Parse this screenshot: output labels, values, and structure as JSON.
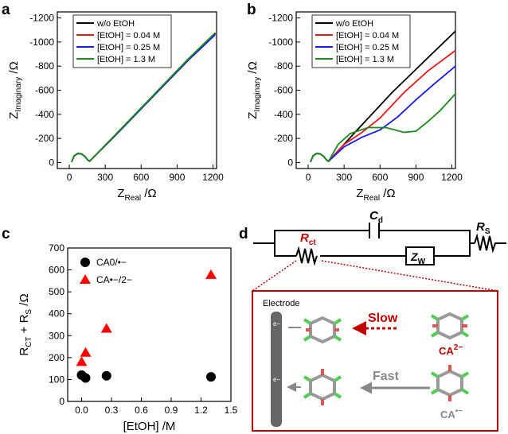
{
  "chart_data": [
    {
      "type": "line",
      "letter": "a",
      "xlabel": [
        "Z",
        "Real",
        " /Ω"
      ],
      "ylabel": [
        "Z",
        "Imaginary",
        " /Ω"
      ],
      "xlim": [
        -100,
        1230
      ],
      "xticks": [
        0,
        300,
        600,
        900,
        1200
      ],
      "ylim": [
        50,
        -1250
      ],
      "yticks": [
        0,
        -200,
        -400,
        -600,
        -800,
        -1000,
        -1200
      ],
      "legend": "top-left",
      "series": [
        {
          "name": "w/o EtOH",
          "color": "#000000",
          "x": [
            20,
            40,
            70,
            100,
            130,
            155,
            170,
            400,
            700,
            1000,
            1220
          ],
          "values": [
            -5,
            -55,
            -75,
            -72,
            -50,
            -20,
            -10,
            -245,
            -555,
            -865,
            -1075
          ]
        },
        {
          "name": "[EtOH] = 0.04 M",
          "color": "#e8191b",
          "x": [
            20,
            40,
            70,
            100,
            130,
            155,
            170,
            400,
            700,
            1000,
            1220
          ],
          "values": [
            -5,
            -55,
            -75,
            -72,
            -50,
            -20,
            -10,
            -243,
            -552,
            -860,
            -1070
          ]
        },
        {
          "name": "[EtOH] = 0.25 M",
          "color": "#1a1ae6",
          "x": [
            20,
            40,
            70,
            100,
            130,
            155,
            170,
            400,
            700,
            1000,
            1220
          ],
          "values": [
            -5,
            -55,
            -75,
            -72,
            -50,
            -20,
            -10,
            -240,
            -548,
            -855,
            -1062
          ]
        },
        {
          "name": "[EtOH] = 1.3 M",
          "color": "#1a8a1a",
          "x": [
            20,
            40,
            70,
            100,
            130,
            155,
            170,
            400,
            700,
            1000,
            1220
          ],
          "values": [
            -5,
            -55,
            -75,
            -72,
            -50,
            -20,
            -10,
            -246,
            -556,
            -866,
            -1078
          ]
        }
      ]
    },
    {
      "type": "line",
      "letter": "b",
      "xlabel": [
        "Z",
        "Real",
        " /Ω"
      ],
      "ylabel": [
        "Z",
        "Imaginary",
        " /Ω"
      ],
      "xlim": [
        -100,
        1230
      ],
      "xticks": [
        0,
        300,
        600,
        900,
        1200
      ],
      "ylim": [
        50,
        -1250
      ],
      "yticks": [
        0,
        -200,
        -400,
        -600,
        -800,
        -1000,
        -1200
      ],
      "legend": "top-left",
      "series": [
        {
          "name": "w/o EtOH",
          "color": "#000000",
          "x": [
            20,
            40,
            70,
            100,
            130,
            155,
            170,
            400,
            700,
            1000,
            1230
          ],
          "values": [
            -5,
            -55,
            -75,
            -72,
            -50,
            -20,
            -10,
            -260,
            -580,
            -870,
            -1090
          ]
        },
        {
          "name": "[EtOH] = 0.04 M",
          "color": "#e8191b",
          "x": [
            20,
            40,
            70,
            100,
            130,
            155,
            170,
            300,
            450,
            600,
            800,
            1000,
            1230
          ],
          "values": [
            -5,
            -55,
            -75,
            -72,
            -50,
            -20,
            -10,
            -150,
            -250,
            -370,
            -580,
            -760,
            -930
          ]
        },
        {
          "name": "[EtOH] = 0.25 M",
          "color": "#1a1ae6",
          "x": [
            20,
            40,
            70,
            100,
            130,
            155,
            170,
            300,
            450,
            600,
            750,
            900,
            1050,
            1230
          ],
          "values": [
            -5,
            -55,
            -75,
            -72,
            -50,
            -20,
            -10,
            -130,
            -210,
            -270,
            -380,
            -520,
            -650,
            -800
          ]
        },
        {
          "name": "[EtOH] = 1.3 M",
          "color": "#1a8a1a",
          "x": [
            20,
            40,
            70,
            100,
            130,
            155,
            170,
            250,
            350,
            500,
            650,
            800,
            900,
            1000,
            1100,
            1230
          ],
          "values": [
            -5,
            -55,
            -75,
            -72,
            -50,
            -20,
            -10,
            -150,
            -240,
            -290,
            -290,
            -250,
            -260,
            -340,
            -430,
            -570
          ]
        }
      ]
    },
    {
      "type": "scatter",
      "letter": "c",
      "xlabel": [
        "[EtOH] /M"
      ],
      "ylabel": [
        "R",
        "CT",
        " + R",
        "S",
        " /Ω"
      ],
      "xlim": [
        -0.14,
        1.5
      ],
      "xticks": [
        {
          "value": 0,
          "label": "0.0"
        },
        0.3,
        0.6,
        0.9,
        1.2,
        1.5
      ],
      "ylim": [
        0,
        700
      ],
      "yticks": [
        0,
        100,
        200,
        300,
        400,
        500,
        600,
        700
      ],
      "legend": "top-left",
      "series": [
        {
          "name": "CA0/•−",
          "color": "#000000",
          "marker": "circle",
          "x": [
            0,
            0.04,
            0.25,
            1.3
          ],
          "values": [
            120,
            107,
            117,
            112
          ]
        },
        {
          "name": "CA•−/2−",
          "color": "#ff0000",
          "marker": "triangle",
          "x": [
            0,
            0.04,
            0.25,
            1.3
          ],
          "values": [
            180,
            222,
            332,
            577
          ]
        }
      ]
    }
  ],
  "diagram": {
    "letter": "d",
    "capacitor": [
      "C",
      "d"
    ],
    "resistor_s": [
      "R",
      "S"
    ],
    "resistor_ct": [
      "R",
      "ct"
    ],
    "warburg": [
      "Z",
      "W"
    ],
    "electrode": "Electrode",
    "slow": "Slow",
    "fast": "Fast",
    "species_top": [
      "CA",
      "2−"
    ],
    "species_bottom": [
      "CA",
      "•−"
    ],
    "electrons": [
      "e−",
      "e−"
    ]
  }
}
